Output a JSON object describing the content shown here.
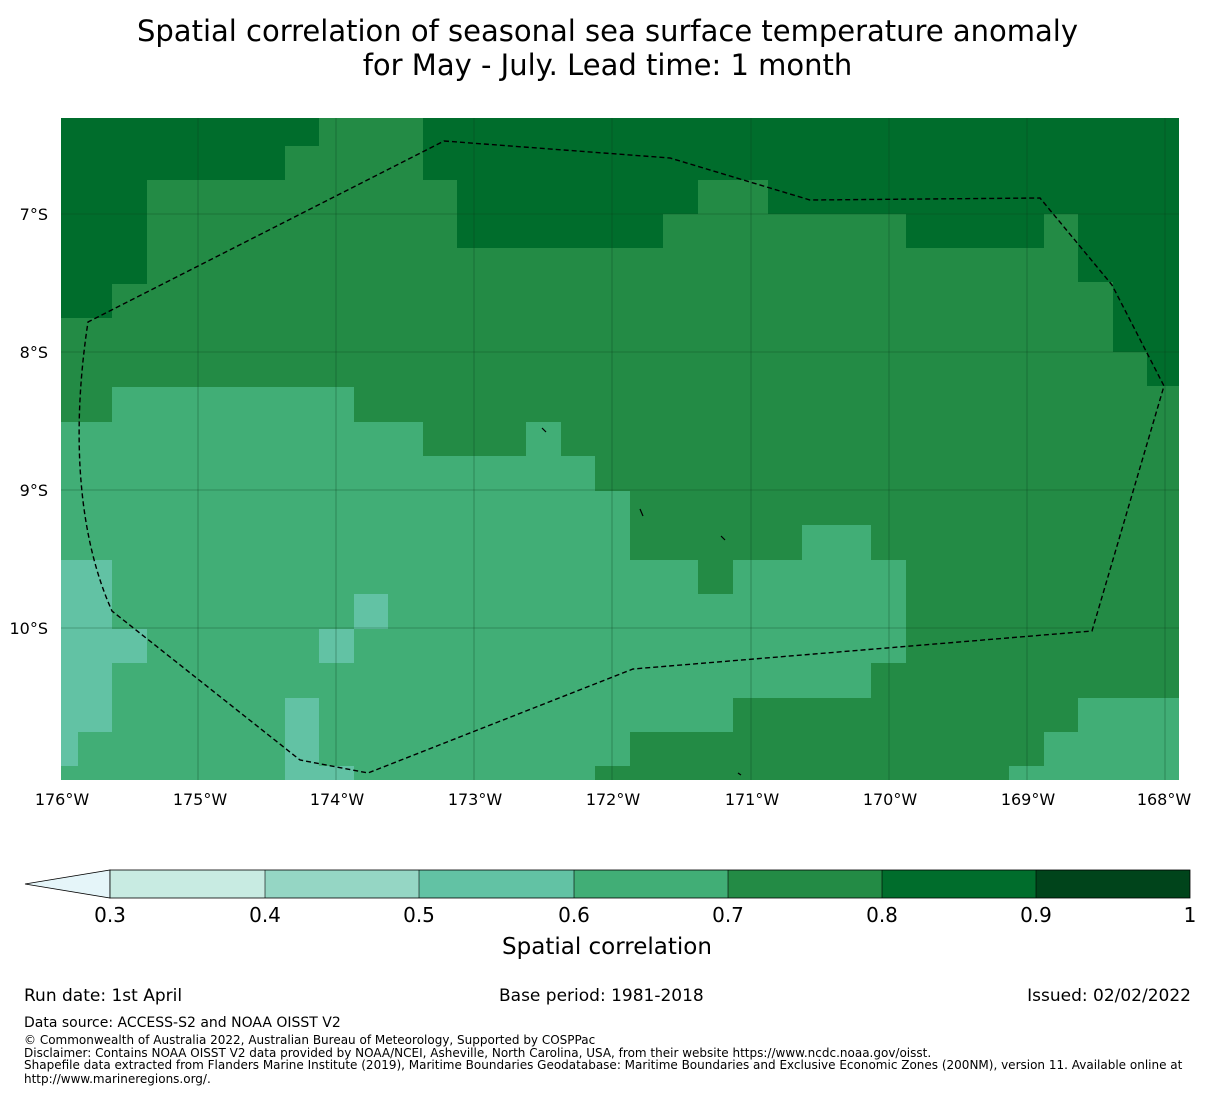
{
  "title": {
    "line1": "Spatial correlation of seasonal sea surface temperature anomaly",
    "line2": "for May - July. Lead time: 1 month"
  },
  "map": {
    "lon_ticks": [
      "176°W",
      "175°W",
      "174°W",
      "173°W",
      "172°W",
      "171°W",
      "170°W",
      "169°W",
      "168°W"
    ],
    "lat_ticks": [
      "7°S",
      "8°S",
      "9°S",
      "10°S"
    ],
    "grid": [
      "AAAAAAAAAAAAAAAAAAAAAAAAAAAAAAAAAAAAAAAAAAAAAAAAAAAAAAAAAAAAAAAAAAAAAAAAAAAAAAAAAAAAAAAAAAAAAAAAAAAAAAAAAAAAAAAAAAAAAAAAAAAAAAAAAAAAAAAA"
    ],
    "colors": {
      "0.3-0.4": "#c8ebe2",
      "0.4-0.5": "#95d6c4",
      "0.5-0.6": "#62c2a4",
      "0.6-0.7": "#41ae76",
      "0.7-0.8": "#238b45",
      "0.8-0.9": "#006d2c",
      "0.9-1.0": "#00441b",
      "below": "#e5f5f9"
    }
  },
  "colorbar": {
    "ticks": [
      "0.3",
      "0.4",
      "0.5",
      "0.6",
      "0.7",
      "0.8",
      "0.9",
      "1"
    ],
    "label": "Spatial correlation"
  },
  "footer": {
    "run_date": "Run date: 1st April",
    "base_period": "Base period: 1981-2018",
    "issued": "Issued: 02/02/2022",
    "data_source": "Data source: ACCESS-S2 and NOAA OISST V2",
    "copyright": "© Commonwealth of Australia 2022, Australian Bureau of Meteorology, Supported by COSPPac",
    "disclaimer": "Disclaimer: Contains NOAA OISST V2 data provided by NOAA/NCEI, Asheville, North Carolina, USA, from their website https://www.ncdc.noaa.gov/oisst.",
    "shapefile_1": "Shapefile data extracted from Flanders Marine Institute (2019), Maritime Boundaries Geodatabase: Maritime Boundaries and Exclusive Economic Zones (200NM), version 11. Available online at",
    "shapefile_2": "http://www.marineregions.org/."
  }
}
